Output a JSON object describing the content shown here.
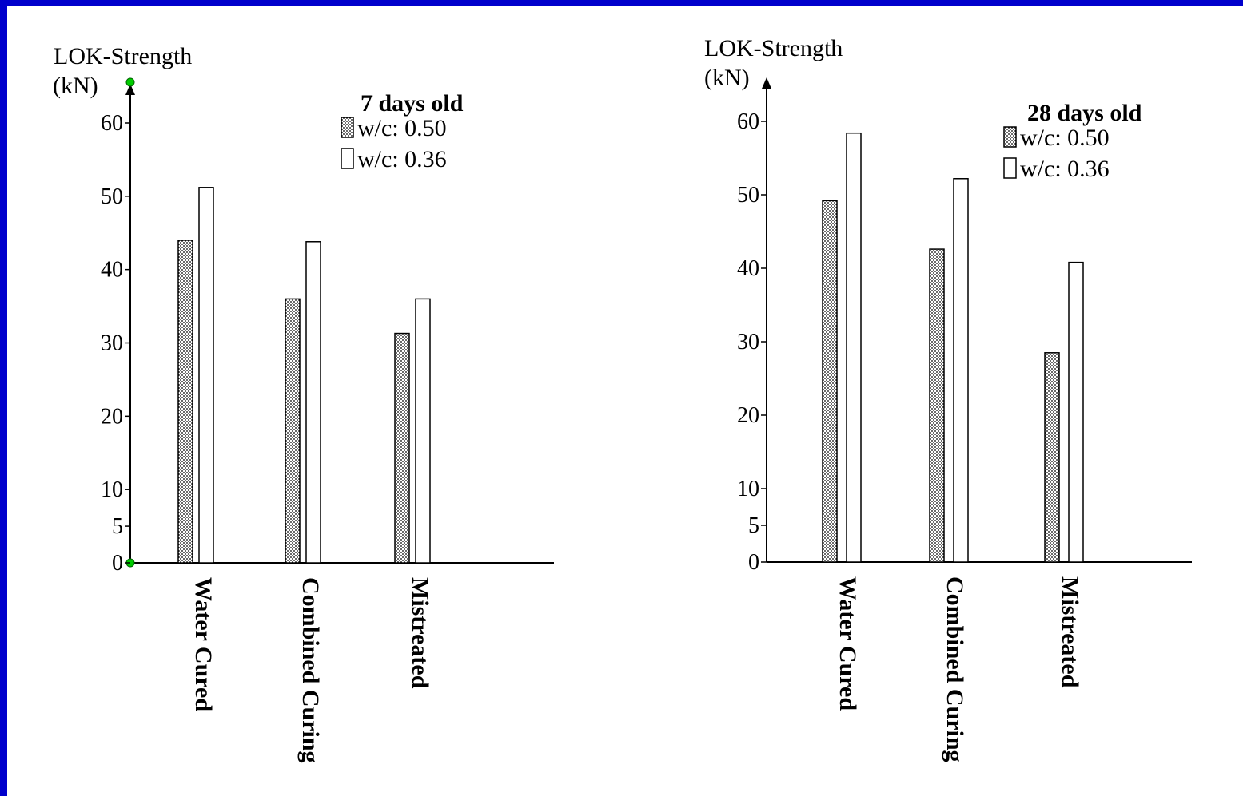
{
  "colors": {
    "background_border": "#0000cc",
    "panel": "#ffffff",
    "ink": "#000000",
    "axis_marker": "#00cc00"
  },
  "chart_data": [
    {
      "type": "bar",
      "title": "7 days old",
      "ylabel_line1": "LOK-Strength",
      "ylabel_line2": "(kN)",
      "xlabel": "",
      "categories": [
        "Water Cured",
        "Combined Curing",
        "Mistreated"
      ],
      "series": [
        {
          "name": "w/c: 0.50",
          "pattern": "dotted",
          "values": [
            44,
            36,
            31.3
          ]
        },
        {
          "name": "w/c: 0.36",
          "pattern": "hollow",
          "values": [
            51.2,
            43.8,
            36
          ]
        }
      ],
      "yticks": [
        "0",
        "5",
        "10",
        "20",
        "30",
        "40",
        "50",
        "60"
      ],
      "ylim": [
        0,
        60
      ],
      "legend_position": "top-right",
      "grid": false
    },
    {
      "type": "bar",
      "title": "28 days old",
      "ylabel_line1": "LOK-Strength",
      "ylabel_line2": "(kN)",
      "xlabel": "",
      "categories": [
        "Water Cured",
        "Combined Curing",
        "Mistreated"
      ],
      "series": [
        {
          "name": "w/c: 0.50",
          "pattern": "dotted",
          "values": [
            49.2,
            42.6,
            28.5
          ]
        },
        {
          "name": "w/c: 0.36",
          "pattern": "hollow",
          "values": [
            58.4,
            52.2,
            40.8
          ]
        }
      ],
      "yticks": [
        "0",
        "5",
        "10",
        "20",
        "30",
        "40",
        "50",
        "60"
      ],
      "ylim": [
        0,
        60
      ],
      "legend_position": "top-right",
      "grid": false
    }
  ]
}
